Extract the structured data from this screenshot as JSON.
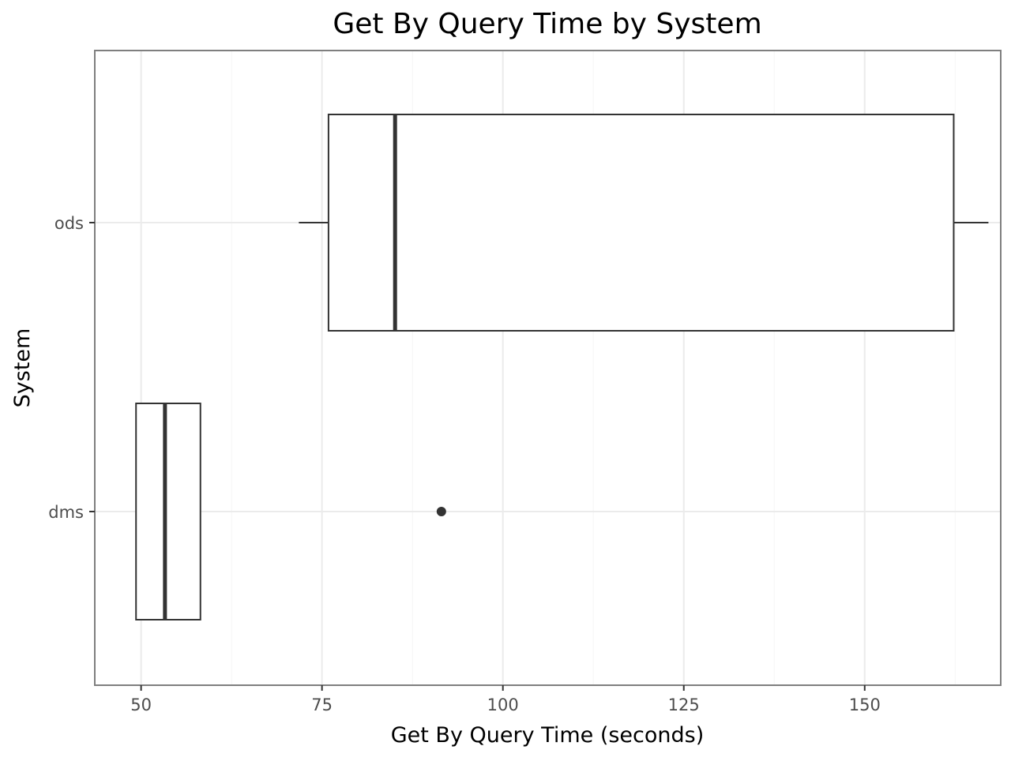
{
  "chart_data": {
    "type": "boxplot",
    "orientation": "horizontal",
    "title": "Get By Query Time by System",
    "xlabel": "Get By Query Time (seconds)",
    "ylabel": "System",
    "xlim": [
      43.6,
      168.8
    ],
    "x_ticks": [
      50,
      75,
      100,
      125,
      150
    ],
    "x_tick_labels": [
      "50",
      "75",
      "100",
      "125",
      "150"
    ],
    "categories": [
      "ods",
      "dms"
    ],
    "grid": true,
    "legend": "none",
    "series": [
      {
        "category": "ods",
        "whisker_low": 71.8,
        "q1": 75.9,
        "median": 85.1,
        "q3": 162.3,
        "whisker_high": 167.1,
        "outliers": []
      },
      {
        "category": "dms",
        "whisker_low": 49.3,
        "q1": 49.3,
        "median": 53.3,
        "q3": 58.2,
        "whisker_high": 58.2,
        "outliers": [
          91.5
        ]
      }
    ],
    "colors": {
      "box_fill": "#ffffff",
      "box_stroke": "#333333",
      "grid_major": "#ebebeb",
      "grid_minor": "#f5f5f5",
      "panel_border": "#7f7f7f",
      "tick_text": "#4d4d4d"
    }
  }
}
